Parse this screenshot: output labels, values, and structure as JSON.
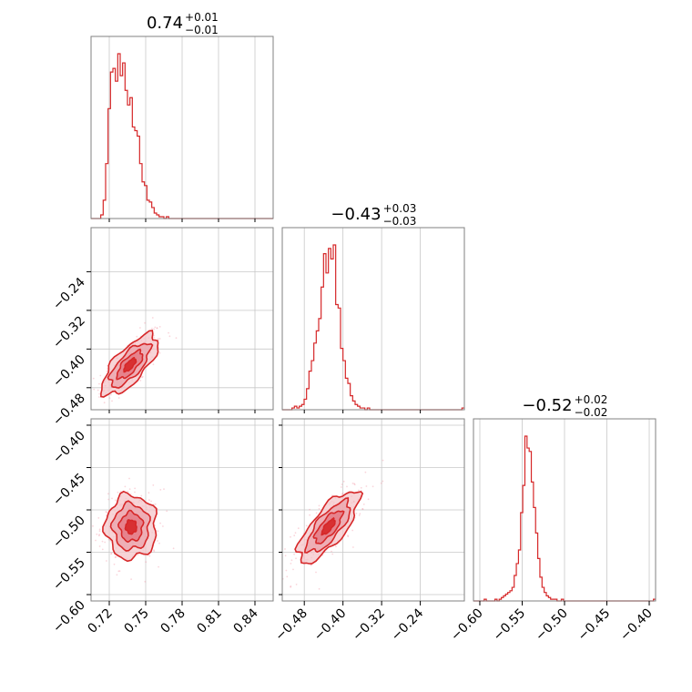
{
  "chart_data": {
    "type": "corner",
    "color": "#d62728",
    "fill_color": "#f4c2c6",
    "grid": true,
    "parameters": [
      {
        "median": "0.74",
        "upper": "+0.01",
        "lower": "−0.01",
        "range": [
          0.705,
          0.855
        ],
        "ticks": [
          0.72,
          0.75,
          0.78,
          0.81,
          0.84
        ],
        "tick_labels": [
          "0.72",
          "0.75",
          "0.78",
          "0.81",
          "0.84"
        ]
      },
      {
        "median": "−0.43",
        "upper": "+0.03",
        "lower": "−0.03",
        "range": [
          -0.5256,
          -0.1488
        ],
        "ticks": [
          -0.48,
          -0.4,
          -0.32,
          -0.24
        ],
        "tick_labels": [
          "−0.48",
          "−0.40",
          "−0.32",
          "−0.24"
        ]
      },
      {
        "median": "−0.52",
        "upper": "+0.02",
        "lower": "−0.02",
        "range": [
          -0.6075,
          -0.3925
        ],
        "ticks": [
          -0.6,
          -0.55,
          -0.5,
          -0.45,
          -0.4
        ],
        "tick_labels": [
          "−0.60",
          "−0.55",
          "−0.50",
          "−0.45",
          "−0.40"
        ]
      }
    ],
    "histograms": [
      {
        "param": 0,
        "bins": [
          0.705,
          0.855
        ],
        "counts": [
          0,
          0,
          0,
          0,
          2,
          10,
          30,
          60,
          80,
          82,
          75,
          90,
          78,
          85,
          70,
          62,
          66,
          50,
          48,
          45,
          30,
          20,
          18,
          10,
          9,
          6,
          3,
          2,
          1,
          1,
          0,
          1,
          0,
          0,
          0,
          0,
          0,
          0,
          0,
          0,
          0,
          0,
          0,
          0,
          0,
          0,
          0,
          0,
          0,
          0,
          0,
          0,
          0,
          0,
          0,
          0,
          0,
          0,
          0,
          0,
          0,
          0,
          0,
          0,
          0,
          0,
          0,
          0,
          0,
          0,
          0,
          0,
          0,
          0,
          0
        ]
      },
      {
        "param": 1,
        "bins": [
          -0.5256,
          -0.1488
        ],
        "counts": [
          0,
          0,
          0,
          0,
          1,
          2,
          1,
          2,
          3,
          6,
          12,
          22,
          28,
          38,
          45,
          52,
          70,
          89,
          78,
          92,
          86,
          94,
          60,
          58,
          35,
          28,
          18,
          15,
          8,
          5,
          3,
          2,
          1,
          1,
          0,
          1,
          0,
          0,
          0,
          0,
          0,
          0,
          0,
          0,
          0,
          0,
          0,
          0,
          0,
          0,
          0,
          0,
          0,
          0,
          0,
          0,
          0,
          0,
          0,
          0,
          0,
          0,
          0,
          0,
          0,
          0,
          0,
          0,
          0,
          0,
          0,
          0,
          0,
          0,
          1
        ]
      },
      {
        "param": 2,
        "bins": [
          -0.6075,
          -0.3925
        ],
        "counts": [
          0,
          0,
          0,
          0,
          0,
          1,
          0,
          0,
          0,
          0,
          1,
          0,
          1,
          2,
          3,
          4,
          5,
          6,
          8,
          15,
          22,
          30,
          52,
          68,
          97,
          90,
          88,
          70,
          55,
          40,
          25,
          14,
          8,
          5,
          3,
          2,
          1,
          1,
          1,
          0,
          0,
          1,
          0,
          0,
          0,
          0,
          0,
          0,
          0,
          0,
          0,
          0,
          0,
          0,
          0,
          0,
          0,
          0,
          0,
          0,
          0,
          0,
          0,
          0,
          0,
          0,
          0,
          0,
          0,
          0,
          0,
          0,
          0,
          0,
          0,
          0,
          0,
          0,
          0,
          0,
          0,
          0,
          0,
          0,
          1
        ]
      }
    ],
    "densities": [
      {
        "x_param": 0,
        "y_param": 1,
        "mean": [
          0.737,
          -0.433
        ],
        "std": [
          0.011,
          0.03
        ],
        "corr": 0.72
      },
      {
        "x_param": 0,
        "y_param": 2,
        "mean": [
          0.738,
          -0.52
        ],
        "std": [
          0.01,
          0.018
        ],
        "corr": 0.0
      },
      {
        "x_param": 1,
        "y_param": 2,
        "mean": [
          -0.43,
          -0.52
        ],
        "std": [
          0.03,
          0.02
        ],
        "corr": 0.75
      }
    ]
  }
}
